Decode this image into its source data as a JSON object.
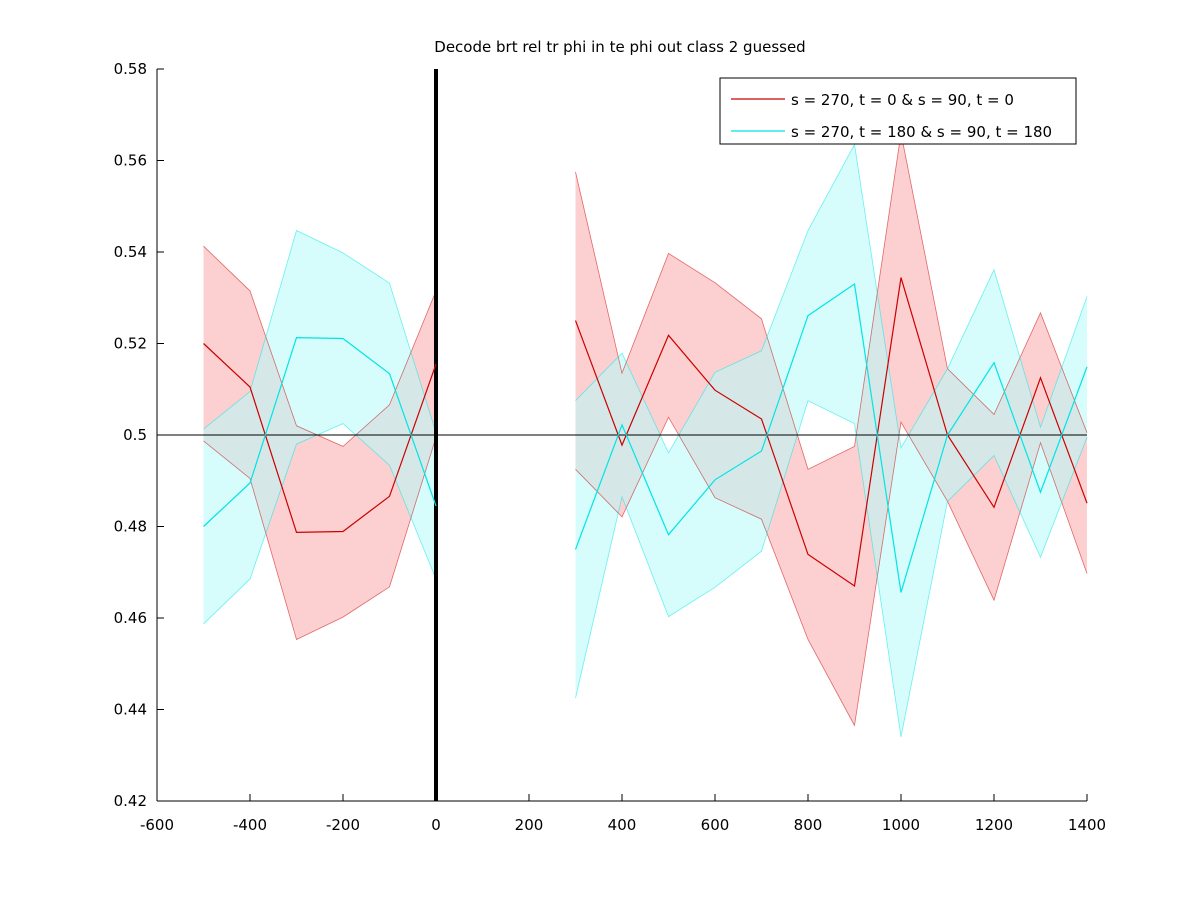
{
  "chart_data": {
    "type": "line",
    "title": "Decode brt rel tr phi in te phi out  class 2 guessed",
    "xlabel": "",
    "ylabel": "",
    "xlim": [
      -600,
      1400
    ],
    "ylim": [
      0.42,
      0.58
    ],
    "xticks": [
      -600,
      -400,
      -200,
      0,
      200,
      400,
      600,
      800,
      1000,
      1200,
      1400
    ],
    "xtick_labels": [
      "-600",
      "-400",
      "-200",
      "0",
      "200",
      "400",
      "600",
      "800",
      "1000",
      "1200",
      "1400"
    ],
    "yticks": [
      0.42,
      0.44,
      0.46,
      0.48,
      0.5,
      0.52,
      0.54,
      0.56,
      0.58
    ],
    "ytick_labels": [
      "0.42",
      "0.44",
      "0.46",
      "0.48",
      "0.5",
      "0.52",
      "0.54",
      "0.56",
      "0.58"
    ],
    "grid": false,
    "legend_position": "top-right",
    "reference_lines": {
      "horizontal_y": 0.5,
      "vertical_x": 0
    },
    "series": [
      {
        "name": "s = 270, t = 0 & s = 90, t = 0",
        "color": "#cc0000",
        "band_color": "#f9aaaa",
        "segments": [
          {
            "x": [
              -500,
              -400,
              -300,
              -200,
              -100,
              0
            ],
            "y": [
              0.52,
              0.5105,
              0.4787,
              0.4789,
              0.4866,
              0.5155
            ],
            "upper": [
              0.5413,
              0.5315,
              0.502,
              0.4975,
              0.5066,
              0.5315
            ],
            "lower": [
              0.4987,
              0.4905,
              0.4553,
              0.4602,
              0.4668,
              0.4995
            ]
          },
          {
            "x": [
              300,
              400,
              500,
              600,
              700,
              800,
              900,
              1000,
              1100,
              1200,
              1300,
              1400
            ],
            "y": [
              0.525,
              0.4978,
              0.5218,
              0.5098,
              0.5035,
              0.4739,
              0.467,
              0.5344,
              0.5,
              0.4842,
              0.5125,
              0.4851
            ],
            "upper": [
              0.5575,
              0.5135,
              0.5397,
              0.5333,
              0.5254,
              0.4925,
              0.4975,
              0.566,
              0.5145,
              0.5045,
              0.5267,
              0.5005
            ],
            "lower": [
              0.4925,
              0.4821,
              0.5039,
              0.4863,
              0.4816,
              0.4553,
              0.4365,
              0.5028,
              0.4855,
              0.4639,
              0.4983,
              0.4697
            ]
          }
        ]
      },
      {
        "name": "s = 270, t = 180 & s = 90, t = 180",
        "color": "#00e5e5",
        "band_color": "#b5fafa",
        "segments": [
          {
            "x": [
              -500,
              -400,
              -300,
              -200,
              -100,
              0
            ],
            "y": [
              0.48,
              0.4895,
              0.5213,
              0.5211,
              0.5134,
              0.4845
            ],
            "upper": [
              0.5013,
              0.5095,
              0.5447,
              0.5398,
              0.5332,
              0.5005
            ],
            "lower": [
              0.4587,
              0.4685,
              0.498,
              0.5025,
              0.4934,
              0.4685
            ]
          },
          {
            "x": [
              300,
              400,
              500,
              600,
              700,
              800,
              900,
              1000,
              1100,
              1200,
              1300,
              1400
            ],
            "y": [
              0.475,
              0.5022,
              0.4782,
              0.4902,
              0.4965,
              0.5261,
              0.533,
              0.4656,
              0.5,
              0.5158,
              0.4875,
              0.5149
            ],
            "upper": [
              0.5075,
              0.5179,
              0.4961,
              0.5137,
              0.5184,
              0.5447,
              0.5635,
              0.4972,
              0.5145,
              0.5361,
              0.5017,
              0.5303
            ],
            "lower": [
              0.4425,
              0.4865,
              0.4603,
              0.4667,
              0.4746,
              0.5075,
              0.5025,
              0.434,
              0.4855,
              0.4955,
              0.4733,
              0.4995
            ]
          }
        ]
      }
    ]
  }
}
